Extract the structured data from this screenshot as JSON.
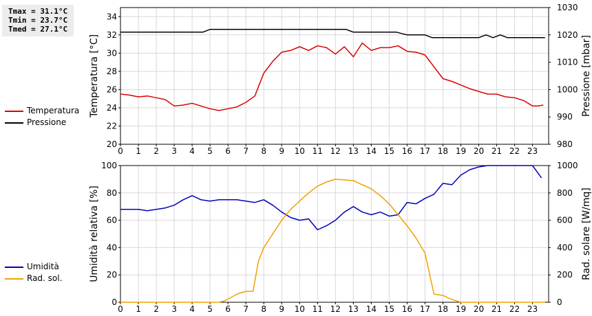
{
  "stats": {
    "tmax": "Tmax = 31.1°C",
    "tmin": "Tmin = 23.7°C",
    "tmed": "Tmed = 27.1°C"
  },
  "legend_top": [
    {
      "label": "Temperatura",
      "color": "#dd0000"
    },
    {
      "label": "Pressione",
      "color": "#000000"
    }
  ],
  "legend_bottom": [
    {
      "label": "Umidità",
      "color": "#0000bb"
    },
    {
      "label": "Rad. sol.",
      "color": "#f0a000"
    }
  ],
  "chart_data": [
    {
      "type": "line",
      "grid": true,
      "x_ticks": [
        "0",
        "1",
        "2",
        "3",
        "4",
        "5",
        "6",
        "7",
        "8",
        "9",
        "10",
        "11",
        "12",
        "13",
        "14",
        "15",
        "16",
        "17",
        "18",
        "19",
        "20",
        "21",
        "22",
        "23"
      ],
      "xlim": [
        0,
        23.9
      ],
      "ylabel": "Temperatura [°C]",
      "ylim": [
        20,
        35
      ],
      "y_ticks": [
        20,
        22,
        24,
        26,
        28,
        30,
        32,
        34
      ],
      "y2label": "Pressione [mbar]",
      "y2lim": [
        980,
        1030
      ],
      "y2_ticks": [
        980,
        990,
        1000,
        1010,
        1020,
        1030
      ],
      "series": [
        {
          "name": "Temperatura",
          "axis": "left",
          "color": "#dd0000",
          "x": [
            0,
            0.5,
            1,
            1.5,
            2,
            2.5,
            3,
            3.5,
            4,
            4.5,
            5,
            5.5,
            6,
            6.5,
            7,
            7.5,
            8,
            8.5,
            9,
            9.5,
            10,
            10.5,
            11,
            11.5,
            12,
            12.5,
            13,
            13.5,
            14,
            14.5,
            15,
            15.5,
            16,
            16.5,
            17,
            17.5,
            18,
            18.5,
            19,
            19.5,
            20,
            20.5,
            21,
            21.5,
            22,
            22.5,
            23,
            23.3,
            23.6
          ],
          "values": [
            25.5,
            25.4,
            25.2,
            25.3,
            25.1,
            24.9,
            24.2,
            24.3,
            24.5,
            24.2,
            23.9,
            23.7,
            23.9,
            24.1,
            24.6,
            25.3,
            27.8,
            29.1,
            30.1,
            30.3,
            30.7,
            30.3,
            30.8,
            30.6,
            29.9,
            30.7,
            29.6,
            31.1,
            30.3,
            30.6,
            30.6,
            30.8,
            30.2,
            30.1,
            29.8,
            28.5,
            27.2,
            26.9,
            26.5,
            26.1,
            25.8,
            25.5,
            25.5,
            25.2,
            25.1,
            24.8,
            24.2,
            24.2,
            24.3
          ]
        },
        {
          "name": "Pressione",
          "axis": "right",
          "color": "#000000",
          "x": [
            0,
            1,
            2,
            3,
            4,
            4.6,
            5,
            6,
            7,
            8,
            9,
            10,
            11,
            12,
            12.6,
            13,
            14,
            15,
            15.4,
            16,
            17,
            17.4,
            18,
            19,
            20,
            20.4,
            20.8,
            21.2,
            21.6,
            22,
            22.4,
            23,
            23.7
          ],
          "values": [
            1021,
            1021,
            1021,
            1021,
            1021,
            1021,
            1022,
            1022,
            1022,
            1022,
            1022,
            1022,
            1022,
            1022,
            1022,
            1021,
            1021,
            1021,
            1021,
            1020,
            1020,
            1019,
            1019,
            1019,
            1019,
            1020,
            1019,
            1020,
            1019,
            1019,
            1019,
            1019,
            1019
          ]
        }
      ]
    },
    {
      "type": "line",
      "grid": true,
      "x_ticks": [
        "0",
        "1",
        "2",
        "3",
        "4",
        "5",
        "6",
        "7",
        "8",
        "9",
        "10",
        "11",
        "12",
        "13",
        "14",
        "15",
        "16",
        "17",
        "18",
        "19",
        "20",
        "21",
        "22",
        "23"
      ],
      "xlim": [
        0,
        23.9
      ],
      "ylabel": "Umidità relativa [%]",
      "ylim": [
        0,
        100
      ],
      "y_ticks": [
        0,
        20,
        40,
        60,
        80,
        100
      ],
      "y2label": "Rad. solare [W/mq]",
      "y2lim": [
        0,
        1000
      ],
      "y2_ticks": [
        0,
        200,
        400,
        600,
        800,
        1000
      ],
      "series": [
        {
          "name": "Umidità",
          "axis": "left",
          "color": "#0000bb",
          "x": [
            0,
            0.5,
            1,
            1.5,
            2,
            2.5,
            3,
            3.5,
            4,
            4.5,
            5,
            5.5,
            6,
            6.5,
            7,
            7.5,
            8,
            8.5,
            9,
            9.5,
            10,
            10.5,
            11,
            11.5,
            12,
            12.5,
            13,
            13.5,
            14,
            14.5,
            15,
            15.5,
            16,
            16.5,
            17,
            17.5,
            18,
            18.5,
            19,
            19.5,
            20,
            20.5,
            21,
            21.5,
            22,
            22.5,
            23,
            23.5
          ],
          "values": [
            68,
            68,
            68,
            67,
            68,
            69,
            71,
            75,
            78,
            75,
            74,
            75,
            75,
            75,
            74,
            73,
            75,
            71,
            66,
            62,
            60,
            61,
            53,
            56,
            60,
            66,
            70,
            66,
            64,
            66,
            63,
            64,
            73,
            72,
            76,
            79,
            87,
            86,
            93,
            97,
            99,
            100,
            100,
            100,
            100,
            100,
            100,
            91
          ]
        },
        {
          "name": "Rad. sol.",
          "axis": "right",
          "color": "#f0a000",
          "x": [
            0,
            1,
            2,
            3,
            4,
            5,
            5.5,
            5.8,
            6.1,
            6.5,
            7,
            7.4,
            7.7,
            8,
            8.5,
            9,
            9.5,
            10,
            10.5,
            11,
            11.5,
            12,
            12.5,
            13,
            13.5,
            14,
            14.5,
            15,
            15.5,
            16,
            16.5,
            17,
            17.5,
            18,
            18.5,
            19,
            20,
            21,
            22,
            23,
            23.7
          ],
          "values": [
            0,
            0,
            0,
            0,
            0,
            0,
            0,
            10,
            30,
            60,
            80,
            80,
            300,
            400,
            500,
            600,
            680,
            740,
            800,
            850,
            880,
            900,
            895,
            890,
            860,
            830,
            780,
            720,
            640,
            560,
            470,
            360,
            60,
            50,
            20,
            0,
            0,
            0,
            0,
            0,
            0
          ]
        }
      ]
    }
  ]
}
